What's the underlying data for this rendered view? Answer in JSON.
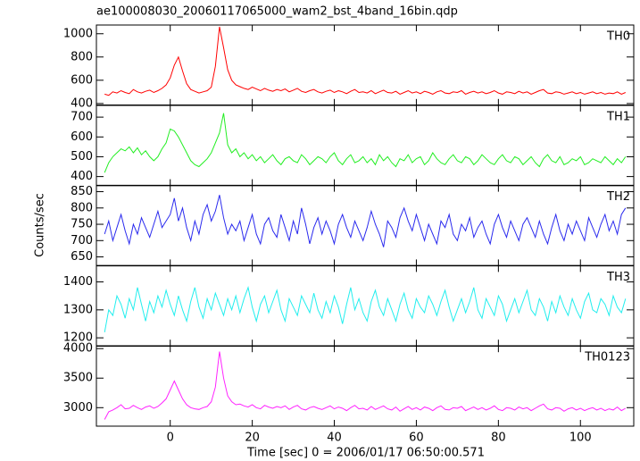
{
  "chart_data": {
    "type": "line",
    "title": "ae100008030_20060117065000_wam2_bst_4band_16bin.qdp",
    "xlabel": "Time [sec] 0 = 2006/01/17 06:50:00.571",
    "ylabel": "Counts/sec",
    "xlim": [
      -18,
      113
    ],
    "xticks": [
      0,
      20,
      40,
      60,
      80,
      100
    ],
    "x": [
      -16,
      -15,
      -14,
      -13,
      -12,
      -11,
      -10,
      -9,
      -8,
      -7,
      -6,
      -5,
      -4,
      -3,
      -2,
      -1,
      0,
      1,
      2,
      3,
      4,
      5,
      6,
      7,
      8,
      9,
      10,
      11,
      12,
      13,
      14,
      15,
      16,
      17,
      18,
      19,
      20,
      21,
      22,
      23,
      24,
      25,
      26,
      27,
      28,
      29,
      30,
      31,
      32,
      33,
      34,
      35,
      36,
      37,
      38,
      39,
      40,
      41,
      42,
      43,
      44,
      45,
      46,
      47,
      48,
      49,
      50,
      51,
      52,
      53,
      54,
      55,
      56,
      57,
      58,
      59,
      60,
      61,
      62,
      63,
      64,
      65,
      66,
      67,
      68,
      69,
      70,
      71,
      72,
      73,
      74,
      75,
      76,
      77,
      78,
      79,
      80,
      81,
      82,
      83,
      84,
      85,
      86,
      87,
      88,
      89,
      90,
      91,
      92,
      93,
      94,
      95,
      96,
      97,
      98,
      99,
      100,
      101,
      102,
      103,
      104,
      105,
      106,
      107,
      108,
      109,
      110,
      111
    ],
    "series": [
      {
        "name": "TH0",
        "color": "#ff0000",
        "ylim": [
          385,
          1075
        ],
        "yticks": [
          400,
          600,
          800,
          1000
        ],
        "values": [
          480,
          470,
          500,
          490,
          510,
          495,
          485,
          520,
          500,
          490,
          505,
          515,
          495,
          510,
          530,
          560,
          620,
          730,
          800,
          680,
          570,
          520,
          505,
          490,
          500,
          510,
          540,
          720,
          1060,
          880,
          690,
          600,
          560,
          545,
          530,
          520,
          540,
          525,
          510,
          530,
          515,
          505,
          520,
          510,
          525,
          500,
          515,
          530,
          505,
          495,
          510,
          520,
          500,
          490,
          505,
          515,
          495,
          510,
          500,
          485,
          505,
          520,
          495,
          500,
          490,
          510,
          485,
          500,
          515,
          495,
          490,
          505,
          480,
          495,
          510,
          490,
          500,
          485,
          505,
          495,
          480,
          500,
          510,
          490,
          485,
          500,
          495,
          510,
          480,
          495,
          505,
          490,
          500,
          485,
          495,
          510,
          490,
          480,
          500,
          495,
          485,
          505,
          490,
          500,
          480,
          495,
          510,
          520,
          490,
          485,
          500,
          495,
          480,
          490,
          500,
          485,
          495,
          480,
          490,
          500,
          485,
          495,
          480,
          490,
          485,
          500,
          480,
          495
        ]
      },
      {
        "name": "TH1",
        "color": "#22ee22",
        "ylim": [
          355,
          760
        ],
        "yticks": [
          400,
          500,
          600,
          700
        ],
        "values": [
          420,
          470,
          500,
          520,
          540,
          530,
          550,
          520,
          545,
          510,
          530,
          500,
          480,
          500,
          540,
          570,
          640,
          630,
          600,
          560,
          520,
          480,
          460,
          450,
          470,
          490,
          520,
          570,
          620,
          720,
          560,
          520,
          540,
          500,
          520,
          490,
          510,
          480,
          500,
          470,
          490,
          510,
          480,
          460,
          490,
          500,
          480,
          470,
          510,
          490,
          460,
          480,
          500,
          490,
          470,
          500,
          520,
          480,
          460,
          490,
          510,
          470,
          480,
          500,
          470,
          490,
          460,
          510,
          480,
          500,
          470,
          450,
          490,
          480,
          510,
          470,
          490,
          500,
          460,
          480,
          520,
          490,
          470,
          460,
          490,
          510,
          480,
          470,
          500,
          490,
          460,
          480,
          510,
          490,
          470,
          460,
          490,
          510,
          480,
          470,
          500,
          490,
          460,
          480,
          500,
          470,
          450,
          490,
          510,
          480,
          470,
          500,
          460,
          470,
          490,
          480,
          500,
          460,
          470,
          490,
          480,
          470,
          500,
          480,
          460,
          490,
          470,
          500
        ]
      },
      {
        "name": "TH2",
        "color": "#2a2aee",
        "ylim": [
          623,
          869
        ],
        "yticks": [
          650,
          700,
          750,
          800,
          850
        ],
        "values": [
          720,
          760,
          700,
          740,
          780,
          730,
          690,
          750,
          720,
          770,
          740,
          710,
          750,
          790,
          740,
          760,
          780,
          830,
          760,
          800,
          740,
          700,
          760,
          720,
          780,
          810,
          760,
          790,
          840,
          770,
          720,
          750,
          730,
          760,
          700,
          740,
          780,
          720,
          690,
          750,
          770,
          730,
          710,
          780,
          740,
          700,
          760,
          720,
          800,
          750,
          690,
          740,
          770,
          720,
          760,
          730,
          690,
          750,
          780,
          740,
          710,
          760,
          730,
          700,
          740,
          790,
          750,
          720,
          680,
          760,
          740,
          710,
          770,
          800,
          760,
          730,
          780,
          740,
          700,
          750,
          720,
          690,
          760,
          740,
          780,
          720,
          700,
          750,
          730,
          770,
          710,
          740,
          760,
          720,
          690,
          750,
          780,
          740,
          710,
          760,
          730,
          700,
          750,
          770,
          740,
          710,
          760,
          720,
          690,
          740,
          780,
          730,
          700,
          750,
          720,
          760,
          730,
          700,
          770,
          740,
          710,
          750,
          780,
          730,
          760,
          720,
          780,
          800
        ]
      },
      {
        "name": "TH3",
        "color": "#22eeee",
        "ylim": [
          1171,
          1458
        ],
        "yticks": [
          1200,
          1300,
          1400
        ],
        "values": [
          1220,
          1300,
          1280,
          1350,
          1320,
          1270,
          1340,
          1300,
          1380,
          1320,
          1260,
          1330,
          1290,
          1350,
          1310,
          1370,
          1320,
          1280,
          1350,
          1300,
          1260,
          1330,
          1380,
          1310,
          1270,
          1340,
          1300,
          1360,
          1320,
          1280,
          1340,
          1300,
          1350,
          1290,
          1340,
          1380,
          1310,
          1260,
          1320,
          1350,
          1290,
          1330,
          1370,
          1300,
          1260,
          1340,
          1310,
          1280,
          1350,
          1320,
          1290,
          1360,
          1300,
          1270,
          1330,
          1290,
          1350,
          1310,
          1250,
          1320,
          1380,
          1300,
          1340,
          1290,
          1260,
          1330,
          1370,
          1310,
          1280,
          1340,
          1300,
          1260,
          1320,
          1360,
          1300,
          1270,
          1340,
          1310,
          1290,
          1350,
          1320,
          1280,
          1330,
          1370,
          1310,
          1260,
          1300,
          1340,
          1290,
          1330,
          1380,
          1300,
          1270,
          1340,
          1310,
          1280,
          1350,
          1320,
          1260,
          1300,
          1340,
          1290,
          1330,
          1370,
          1300,
          1280,
          1340,
          1310,
          1260,
          1330,
          1290,
          1350,
          1310,
          1280,
          1340,
          1300,
          1270,
          1330,
          1360,
          1300,
          1290,
          1340,
          1320,
          1280,
          1350,
          1310,
          1290,
          1340
        ]
      },
      {
        "name": "TH0123",
        "color": "#ff22ff",
        "ylim": [
          2687,
          4045
        ],
        "yticks": [
          3000,
          3500,
          4000
        ],
        "values": [
          2800,
          2930,
          2960,
          3000,
          3050,
          2980,
          2990,
          3040,
          3000,
          2970,
          3010,
          3030,
          2990,
          3020,
          3080,
          3150,
          3300,
          3450,
          3300,
          3150,
          3050,
          3000,
          2980,
          2970,
          3000,
          3020,
          3100,
          3350,
          3950,
          3500,
          3200,
          3100,
          3050,
          3060,
          3030,
          3010,
          3050,
          3000,
          2980,
          3040,
          3010,
          2990,
          3020,
          3000,
          3030,
          2970,
          3010,
          3040,
          2980,
          2960,
          3000,
          3020,
          2990,
          2970,
          3000,
          3030,
          2980,
          3010,
          2990,
          2950,
          3000,
          3040,
          2980,
          2990,
          2960,
          3020,
          2970,
          3000,
          3030,
          2980,
          2960,
          3010,
          2940,
          2980,
          3020,
          2970,
          3000,
          2960,
          3010,
          2990,
          2950,
          3000,
          3030,
          2970,
          2960,
          3000,
          2990,
          3020,
          2950,
          2980,
          3010,
          2970,
          3000,
          2960,
          2990,
          3030,
          2970,
          2950,
          3000,
          2990,
          2960,
          3010,
          2980,
          3000,
          2950,
          2990,
          3030,
          3060,
          2980,
          2960,
          3000,
          2990,
          2940,
          2980,
          3000,
          2960,
          2990,
          2950,
          2980,
          3000,
          2960,
          2990,
          2950,
          2980,
          2960,
          3010,
          2950,
          2990
        ]
      }
    ]
  }
}
